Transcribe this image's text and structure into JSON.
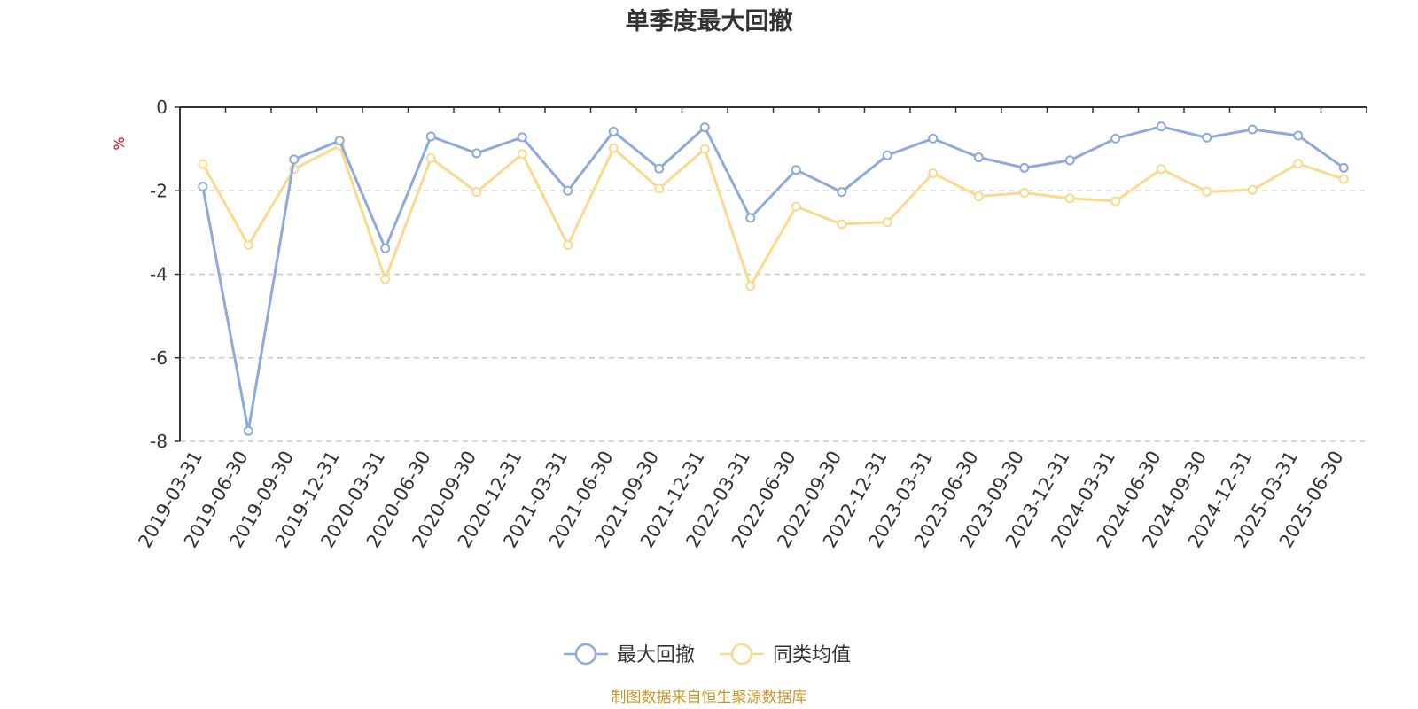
{
  "chart_data": {
    "type": "line",
    "title": "单季度最大回撤",
    "ylabel": "%",
    "ylim": [
      -8,
      0
    ],
    "yticks": [
      0,
      -2,
      -4,
      -6,
      -8
    ],
    "grid": "horizontal-dashed",
    "legend_position": "bottom-center",
    "categories": [
      "2019-03-31",
      "2019-06-30",
      "2019-09-30",
      "2019-12-31",
      "2020-03-31",
      "2020-06-30",
      "2020-09-30",
      "2020-12-31",
      "2021-03-31",
      "2021-06-30",
      "2021-09-30",
      "2021-12-31",
      "2022-03-31",
      "2022-06-30",
      "2022-09-30",
      "2022-12-31",
      "2023-03-31",
      "2023-06-30",
      "2023-09-30",
      "2023-12-31",
      "2024-03-31",
      "2024-06-30",
      "2024-09-30",
      "2024-12-31",
      "2025-03-31",
      "2025-06-30"
    ],
    "series": [
      {
        "name": "最大回撤",
        "color": "#8eaadb",
        "values": [
          -1.9,
          -7.75,
          -1.25,
          -0.8,
          -3.38,
          -0.7,
          -1.1,
          -0.72,
          -2.0,
          -0.58,
          -1.47,
          -0.48,
          -2.65,
          -1.5,
          -2.03,
          -1.15,
          -0.75,
          -1.2,
          -1.45,
          -1.27,
          -0.75,
          -0.46,
          -0.73,
          -0.53,
          -0.68,
          -1.45
        ]
      },
      {
        "name": "同类均值",
        "color": "#fbd98e",
        "values": [
          -1.36,
          -3.3,
          -1.48,
          -0.92,
          -4.12,
          -1.22,
          -2.03,
          -1.12,
          -3.3,
          -0.98,
          -1.95,
          -1.0,
          -4.28,
          -2.38,
          -2.8,
          -2.75,
          -1.58,
          -2.13,
          -2.05,
          -2.18,
          -2.25,
          -1.48,
          -2.02,
          -1.98,
          -1.35,
          -1.72
        ]
      }
    ],
    "source_note": "制图数据来自恒生聚源数据库"
  }
}
